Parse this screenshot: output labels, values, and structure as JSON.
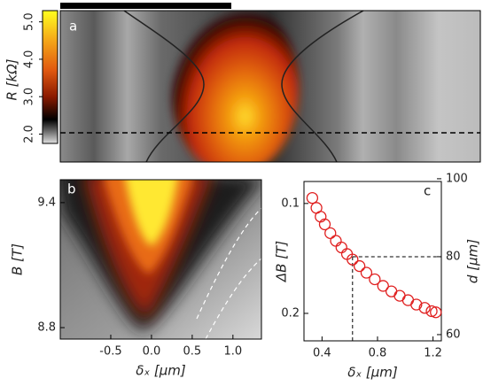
{
  "chart_data": [
    {
      "type": "heatmap",
      "panel": "a",
      "colorbar": {
        "label": "R [kΩ]",
        "clim": [
          1.75,
          5.3
        ],
        "ticks": [
          {
            "value": 2,
            "label": "2.0"
          },
          {
            "value": 3,
            "label": "3.0"
          },
          {
            "value": 4,
            "label": "4.0"
          },
          {
            "value": 5,
            "label": "5.0"
          }
        ]
      }
    },
    {
      "type": "heatmap",
      "panel": "b",
      "xlabel": "δₓ [μm]",
      "ylabel": "B [T]",
      "xlim": [
        -1.12,
        1.35
      ],
      "xticks": [
        -0.5,
        {
          "value": 0,
          "label": "0.0"
        },
        0.5,
        {
          "value": 1,
          "label": "1.0"
        }
      ],
      "ylim": [
        8.745,
        9.51
      ],
      "yticks": [
        8.8,
        9.4
      ]
    },
    {
      "type": "scatter",
      "panel": "c",
      "xlabel": "δₓ [μm]",
      "ylabel": "ΔB [T]",
      "y2label": "d [μm]",
      "x": [
        0.33,
        0.36,
        0.39,
        0.42,
        0.46,
        0.5,
        0.54,
        0.58,
        0.62,
        0.67,
        0.72,
        0.78,
        0.84,
        0.9,
        0.96,
        1.02,
        1.08,
        1.14,
        1.19,
        1.22
      ],
      "values": [
        0.095,
        0.104,
        0.112,
        0.119,
        0.127,
        0.134,
        0.14,
        0.146,
        0.151,
        0.157,
        0.163,
        0.169,
        0.175,
        0.18,
        0.184,
        0.188,
        0.192,
        0.195,
        0.198,
        0.199
      ],
      "color": "#e02020",
      "xlim": [
        0.27,
        1.26
      ],
      "xticks": [
        0.4,
        0.8,
        1.2
      ],
      "ylim": [
        0.225,
        0.08
      ],
      "yticks": [
        0.1,
        0.2
      ],
      "y2lim": [
        58.4,
        99.3
      ],
      "y2ticks": [
        60,
        80,
        100
      ],
      "reference": {
        "x": 0.62,
        "y2": 80
      }
    }
  ]
}
